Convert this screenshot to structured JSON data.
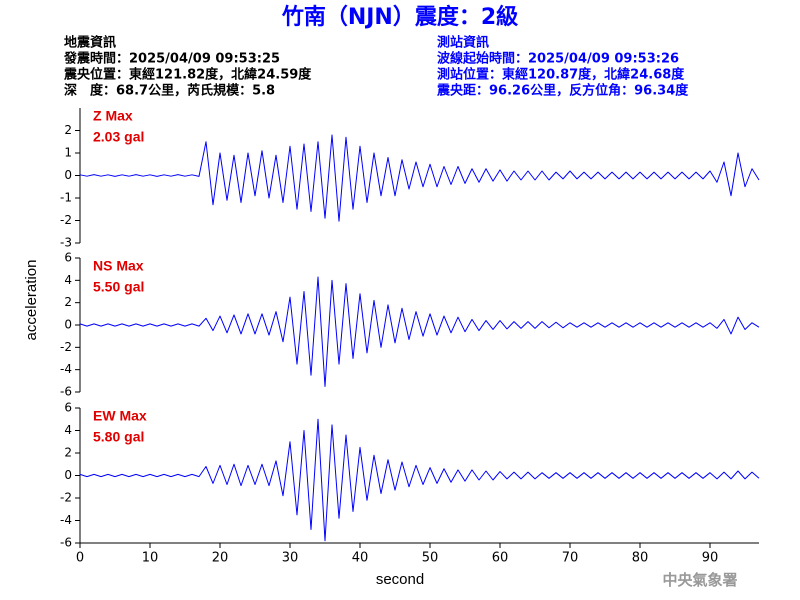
{
  "header": {
    "title": "竹南（NJN）震度：2級",
    "left": [
      "地震資訊",
      "發震時間：2025/04/09 09:53:25",
      "震央位置：東經121.82度，北緯24.59度",
      "深　度：68.7公里，芮氏規模：5.8"
    ],
    "right": [
      "測站資訊",
      "波線起始時間：2025/04/09 09:53:26",
      "測站位置：東經120.87度，北緯24.68度",
      "震央距：96.26公里，反方位角：96.34度"
    ]
  },
  "footer": "中央氣象署",
  "chart_data": [
    {
      "type": "line",
      "annotation": [
        "Z Max",
        "2.03 gal"
      ],
      "color": "#0000ff",
      "ylim": [
        -3,
        3
      ],
      "yticks": [
        -3,
        -2,
        -1,
        0,
        1,
        2
      ],
      "xlim": [
        0,
        97
      ],
      "x": [
        0,
        1,
        2,
        3,
        4,
        5,
        6,
        7,
        8,
        9,
        10,
        11,
        12,
        13,
        14,
        15,
        16,
        17,
        18,
        19,
        20,
        21,
        22,
        23,
        24,
        25,
        26,
        27,
        28,
        29,
        30,
        31,
        32,
        33,
        34,
        35,
        36,
        37,
        38,
        39,
        40,
        41,
        42,
        43,
        44,
        45,
        46,
        47,
        48,
        49,
        50,
        51,
        52,
        53,
        54,
        55,
        56,
        57,
        58,
        59,
        60,
        61,
        62,
        63,
        64,
        65,
        66,
        67,
        68,
        69,
        70,
        71,
        72,
        73,
        74,
        75,
        76,
        77,
        78,
        79,
        80,
        81,
        82,
        83,
        84,
        85,
        86,
        87,
        88,
        89,
        90,
        91,
        92,
        93,
        94,
        95,
        96,
        97
      ],
      "values": [
        0.03,
        -0.03,
        0.04,
        -0.03,
        0.03,
        -0.04,
        0.03,
        -0.03,
        0.04,
        -0.03,
        0.03,
        -0.04,
        0.03,
        -0.03,
        0.04,
        -0.03,
        0.03,
        -0.04,
        1.5,
        -1.3,
        1.0,
        -1.1,
        0.9,
        -1.2,
        1.0,
        -0.9,
        1.1,
        -1.0,
        0.9,
        -1.2,
        1.3,
        -1.5,
        1.4,
        -1.6,
        1.5,
        -1.9,
        1.8,
        -2.03,
        1.7,
        -1.5,
        1.3,
        -1.2,
        1.0,
        -0.9,
        0.8,
        -0.9,
        0.7,
        -0.6,
        0.6,
        -0.5,
        0.5,
        -0.5,
        0.4,
        -0.4,
        0.4,
        -0.35,
        0.3,
        -0.3,
        0.3,
        -0.25,
        0.25,
        -0.25,
        0.2,
        -0.2,
        0.2,
        -0.2,
        0.2,
        -0.2,
        0.15,
        -0.15,
        0.2,
        -0.15,
        0.15,
        -0.15,
        0.15,
        -0.15,
        0.15,
        -0.15,
        0.15,
        -0.15,
        0.15,
        -0.15,
        0.15,
        -0.15,
        0.15,
        -0.15,
        0.15,
        -0.15,
        0.15,
        -0.15,
        0.2,
        -0.3,
        0.6,
        -0.9,
        1.0,
        -0.5,
        0.3,
        -0.2
      ]
    },
    {
      "type": "line",
      "annotation": [
        "NS Max",
        "5.50 gal"
      ],
      "color": "#0000ff",
      "ylabel": "acceleration",
      "ylim": [
        -6,
        6
      ],
      "yticks": [
        -6,
        -4,
        -2,
        0,
        2,
        4,
        6
      ],
      "xlim": [
        0,
        97
      ],
      "x": [
        0,
        1,
        2,
        3,
        4,
        5,
        6,
        7,
        8,
        9,
        10,
        11,
        12,
        13,
        14,
        15,
        16,
        17,
        18,
        19,
        20,
        21,
        22,
        23,
        24,
        25,
        26,
        27,
        28,
        29,
        30,
        31,
        32,
        33,
        34,
        35,
        36,
        37,
        38,
        39,
        40,
        41,
        42,
        43,
        44,
        45,
        46,
        47,
        48,
        49,
        50,
        51,
        52,
        53,
        54,
        55,
        56,
        57,
        58,
        59,
        60,
        61,
        62,
        63,
        64,
        65,
        66,
        67,
        68,
        69,
        70,
        71,
        72,
        73,
        74,
        75,
        76,
        77,
        78,
        79,
        80,
        81,
        82,
        83,
        84,
        85,
        86,
        87,
        88,
        89,
        90,
        91,
        92,
        93,
        94,
        95,
        96,
        97
      ],
      "values": [
        0.1,
        -0.1,
        0.1,
        -0.1,
        0.1,
        -0.1,
        0.1,
        -0.1,
        0.1,
        -0.1,
        0.1,
        -0.1,
        0.1,
        -0.1,
        0.1,
        -0.1,
        0.1,
        -0.1,
        0.6,
        -0.5,
        0.8,
        -0.7,
        0.9,
        -0.8,
        1.0,
        -0.8,
        1.0,
        -0.9,
        1.2,
        -1.5,
        2.5,
        -3.5,
        3.0,
        -4.5,
        4.3,
        -5.5,
        4.0,
        -3.5,
        3.7,
        -3.0,
        2.8,
        -2.5,
        2.2,
        -2.0,
        1.8,
        -1.6,
        1.5,
        -1.3,
        1.2,
        -1.0,
        1.0,
        -0.9,
        0.8,
        -0.7,
        0.7,
        -0.6,
        0.5,
        -0.5,
        0.4,
        -0.4,
        0.4,
        -0.35,
        0.3,
        -0.3,
        0.3,
        -0.3,
        0.3,
        -0.25,
        0.25,
        -0.25,
        0.2,
        -0.2,
        0.2,
        -0.2,
        0.2,
        -0.2,
        0.2,
        -0.2,
        0.2,
        -0.2,
        0.2,
        -0.2,
        0.2,
        -0.2,
        0.2,
        -0.2,
        0.2,
        -0.2,
        0.2,
        -0.2,
        0.2,
        -0.3,
        0.5,
        -0.8,
        0.7,
        -0.4,
        0.2,
        -0.2
      ]
    },
    {
      "type": "line",
      "annotation": [
        "EW Max",
        "5.80 gal"
      ],
      "color": "#0000ff",
      "xlabel": "second",
      "ylim": [
        -6,
        6
      ],
      "yticks": [
        -6,
        -4,
        -2,
        0,
        2,
        4,
        6
      ],
      "xlim": [
        0,
        97
      ],
      "xticks": [
        0,
        10,
        20,
        30,
        40,
        50,
        60,
        70,
        80,
        90
      ],
      "x": [
        0,
        1,
        2,
        3,
        4,
        5,
        6,
        7,
        8,
        9,
        10,
        11,
        12,
        13,
        14,
        15,
        16,
        17,
        18,
        19,
        20,
        21,
        22,
        23,
        24,
        25,
        26,
        27,
        28,
        29,
        30,
        31,
        32,
        33,
        34,
        35,
        36,
        37,
        38,
        39,
        40,
        41,
        42,
        43,
        44,
        45,
        46,
        47,
        48,
        49,
        50,
        51,
        52,
        53,
        54,
        55,
        56,
        57,
        58,
        59,
        60,
        61,
        62,
        63,
        64,
        65,
        66,
        67,
        68,
        69,
        70,
        71,
        72,
        73,
        74,
        75,
        76,
        77,
        78,
        79,
        80,
        81,
        82,
        83,
        84,
        85,
        86,
        87,
        88,
        89,
        90,
        91,
        92,
        93,
        94,
        95,
        96,
        97
      ],
      "values": [
        0.1,
        -0.1,
        0.1,
        -0.1,
        0.1,
        -0.1,
        0.1,
        -0.1,
        0.1,
        -0.1,
        0.1,
        -0.1,
        0.1,
        -0.1,
        0.1,
        -0.1,
        0.1,
        -0.1,
        0.8,
        -0.7,
        0.9,
        -0.8,
        1.0,
        -0.9,
        0.9,
        -0.8,
        1.0,
        -0.9,
        1.3,
        -1.8,
        3.0,
        -3.5,
        4.0,
        -4.8,
        5.0,
        -5.8,
        4.5,
        -3.8,
        3.6,
        -3.2,
        2.5,
        -2.2,
        1.8,
        -1.6,
        1.4,
        -1.3,
        1.2,
        -1.0,
        0.9,
        -0.8,
        0.7,
        -0.7,
        0.6,
        -0.6,
        0.5,
        -0.5,
        0.5,
        -0.4,
        0.4,
        -0.4,
        0.35,
        -0.3,
        0.3,
        -0.3,
        0.3,
        -0.3,
        0.25,
        -0.25,
        0.25,
        -0.25,
        0.25,
        -0.25,
        0.25,
        -0.25,
        0.25,
        -0.25,
        0.25,
        -0.25,
        0.25,
        -0.25,
        0.25,
        -0.25,
        0.25,
        -0.25,
        0.25,
        -0.25,
        0.25,
        -0.25,
        0.25,
        -0.25,
        0.25,
        -0.3,
        0.3,
        -0.3,
        0.4,
        -0.3,
        0.3,
        -0.25
      ]
    }
  ]
}
